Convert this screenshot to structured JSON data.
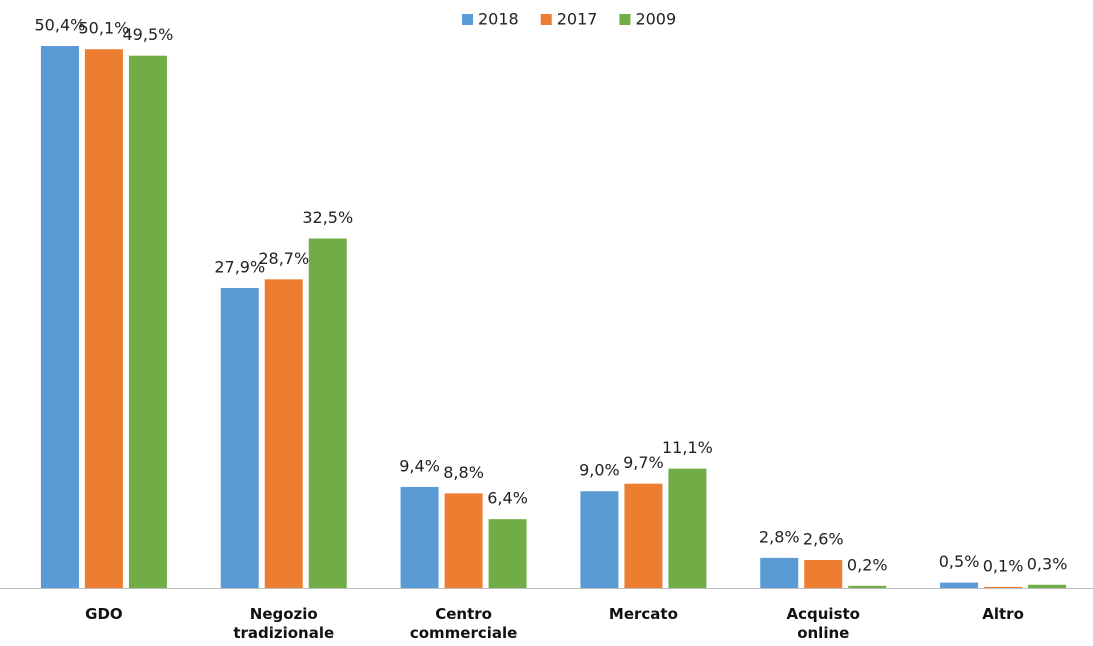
{
  "chart_data": {
    "type": "bar",
    "categories": [
      "GDO",
      "Negozio tradizionale",
      "Centro commerciale",
      "Mercato",
      "Acquisto online",
      "Altro"
    ],
    "series": [
      {
        "name": "2018",
        "color": "#5b9bd5",
        "values": [
          50.4,
          27.9,
          9.4,
          9.0,
          2.8,
          0.5
        ],
        "value_labels": [
          "50,4%",
          "27,9%",
          "9,4%",
          "9,0%",
          "2,8%",
          "0,5%"
        ]
      },
      {
        "name": "2017",
        "color": "#ed7d31",
        "values": [
          50.1,
          28.7,
          8.8,
          9.7,
          2.6,
          0.1
        ],
        "value_labels": [
          "50,1%",
          "28,7%",
          "8,8%",
          "9,7%",
          "2,6%",
          "0,1%"
        ]
      },
      {
        "name": "2009",
        "color": "#70ad47",
        "values": [
          49.5,
          32.5,
          6.4,
          11.1,
          0.2,
          0.3
        ],
        "value_labels": [
          "49,5%",
          "32,5%",
          "6,4%",
          "11,1%",
          "0,2%",
          "0,3%"
        ]
      }
    ],
    "legend": "top"
  }
}
